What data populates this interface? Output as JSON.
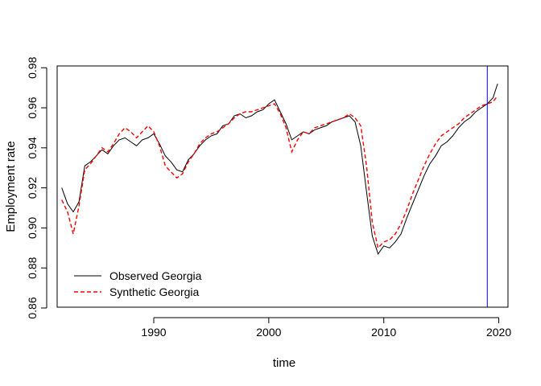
{
  "chart_data": {
    "type": "line",
    "title": "",
    "xlabel": "time",
    "ylabel": "Employment rate",
    "xlim": [
      1981.6,
      2020.8
    ],
    "ylim": [
      0.8604,
      0.9809
    ],
    "x_ticks": [
      1990,
      2000,
      2010,
      2020
    ],
    "x_tick_labels": [
      "1990",
      "2000",
      "2010",
      "2020"
    ],
    "y_ticks": [
      0.86,
      0.88,
      0.9,
      0.92,
      0.94,
      0.96,
      0.98
    ],
    "y_tick_labels": [
      "0.86",
      "0.88",
      "0.90",
      "0.92",
      "0.94",
      "0.96",
      "0.98"
    ],
    "grid": false,
    "legend_position": "bottom-left",
    "vline": {
      "x": 2019.0,
      "color": "#0000ff"
    },
    "series": [
      {
        "name": "Observed Georgia",
        "color": "#000000",
        "dash": "solid",
        "x": [
          1982.0,
          1982.5,
          1983.0,
          1983.5,
          1984.0,
          1984.5,
          1985.0,
          1985.5,
          1986.0,
          1986.5,
          1987.0,
          1987.5,
          1988.0,
          1988.5,
          1989.0,
          1989.5,
          1990.0,
          1990.5,
          1991.0,
          1991.5,
          1992.0,
          1992.5,
          1993.0,
          1993.5,
          1994.0,
          1994.5,
          1995.0,
          1995.5,
          1996.0,
          1996.5,
          1997.0,
          1997.5,
          1998.0,
          1998.5,
          1999.0,
          1999.5,
          2000.0,
          2000.5,
          2001.0,
          2001.5,
          2002.0,
          2002.5,
          2003.0,
          2003.5,
          2004.0,
          2004.5,
          2005.0,
          2005.5,
          2006.0,
          2006.5,
          2007.0,
          2007.5,
          2008.0,
          2008.5,
          2009.0,
          2009.5,
          2010.0,
          2010.5,
          2011.0,
          2011.5,
          2012.0,
          2012.5,
          2013.0,
          2013.5,
          2014.0,
          2014.5,
          2015.0,
          2015.5,
          2016.0,
          2016.5,
          2017.0,
          2017.5,
          2018.0,
          2018.5,
          2019.0,
          2019.5,
          2019.9
        ],
        "y": [
          0.92,
          0.912,
          0.908,
          0.913,
          0.931,
          0.933,
          0.936,
          0.939,
          0.937,
          0.941,
          0.944,
          0.945,
          0.943,
          0.941,
          0.944,
          0.945,
          0.947,
          0.942,
          0.936,
          0.933,
          0.929,
          0.928,
          0.934,
          0.937,
          0.941,
          0.944,
          0.946,
          0.947,
          0.951,
          0.952,
          0.956,
          0.957,
          0.955,
          0.956,
          0.958,
          0.959,
          0.962,
          0.964,
          0.958,
          0.952,
          0.944,
          0.946,
          0.948,
          0.947,
          0.949,
          0.95,
          0.951,
          0.953,
          0.954,
          0.955,
          0.956,
          0.953,
          0.941,
          0.918,
          0.896,
          0.887,
          0.891,
          0.89,
          0.893,
          0.897,
          0.905,
          0.912,
          0.919,
          0.926,
          0.932,
          0.936,
          0.941,
          0.943,
          0.946,
          0.95,
          0.953,
          0.955,
          0.958,
          0.96,
          0.962,
          0.965,
          0.972
        ]
      },
      {
        "name": "Synthetic Georgia",
        "color": "#ff0000",
        "dash": "dashed",
        "x": [
          1982.0,
          1982.5,
          1983.0,
          1983.5,
          1984.0,
          1984.5,
          1985.0,
          1985.5,
          1986.0,
          1986.5,
          1987.0,
          1987.5,
          1988.0,
          1988.5,
          1989.0,
          1989.5,
          1990.0,
          1990.5,
          1991.0,
          1991.5,
          1992.0,
          1992.5,
          1993.0,
          1993.5,
          1994.0,
          1994.5,
          1995.0,
          1995.5,
          1996.0,
          1996.5,
          1997.0,
          1997.5,
          1998.0,
          1998.5,
          1999.0,
          1999.5,
          2000.0,
          2000.5,
          2001.0,
          2001.5,
          2002.0,
          2002.5,
          2003.0,
          2003.5,
          2004.0,
          2004.5,
          2005.0,
          2005.5,
          2006.0,
          2006.5,
          2007.0,
          2007.5,
          2008.0,
          2008.5,
          2009.0,
          2009.5,
          2010.0,
          2010.5,
          2011.0,
          2011.5,
          2012.0,
          2012.5,
          2013.0,
          2013.5,
          2014.0,
          2014.5,
          2015.0,
          2015.5,
          2016.0,
          2016.5,
          2017.0,
          2017.5,
          2018.0,
          2018.5,
          2019.0,
          2019.5,
          2019.9
        ],
        "y": [
          0.914,
          0.908,
          0.897,
          0.911,
          0.929,
          0.932,
          0.936,
          0.94,
          0.938,
          0.942,
          0.947,
          0.95,
          0.948,
          0.945,
          0.948,
          0.951,
          0.948,
          0.941,
          0.931,
          0.928,
          0.925,
          0.927,
          0.933,
          0.937,
          0.942,
          0.945,
          0.947,
          0.948,
          0.95,
          0.952,
          0.955,
          0.957,
          0.958,
          0.958,
          0.959,
          0.96,
          0.961,
          0.962,
          0.957,
          0.95,
          0.938,
          0.944,
          0.948,
          0.947,
          0.95,
          0.951,
          0.952,
          0.953,
          0.954,
          0.955,
          0.957,
          0.955,
          0.951,
          0.931,
          0.903,
          0.89,
          0.893,
          0.894,
          0.897,
          0.902,
          0.909,
          0.917,
          0.924,
          0.931,
          0.937,
          0.942,
          0.946,
          0.948,
          0.95,
          0.952,
          0.955,
          0.957,
          0.959,
          0.961,
          0.962,
          0.963,
          0.966
        ]
      }
    ]
  }
}
